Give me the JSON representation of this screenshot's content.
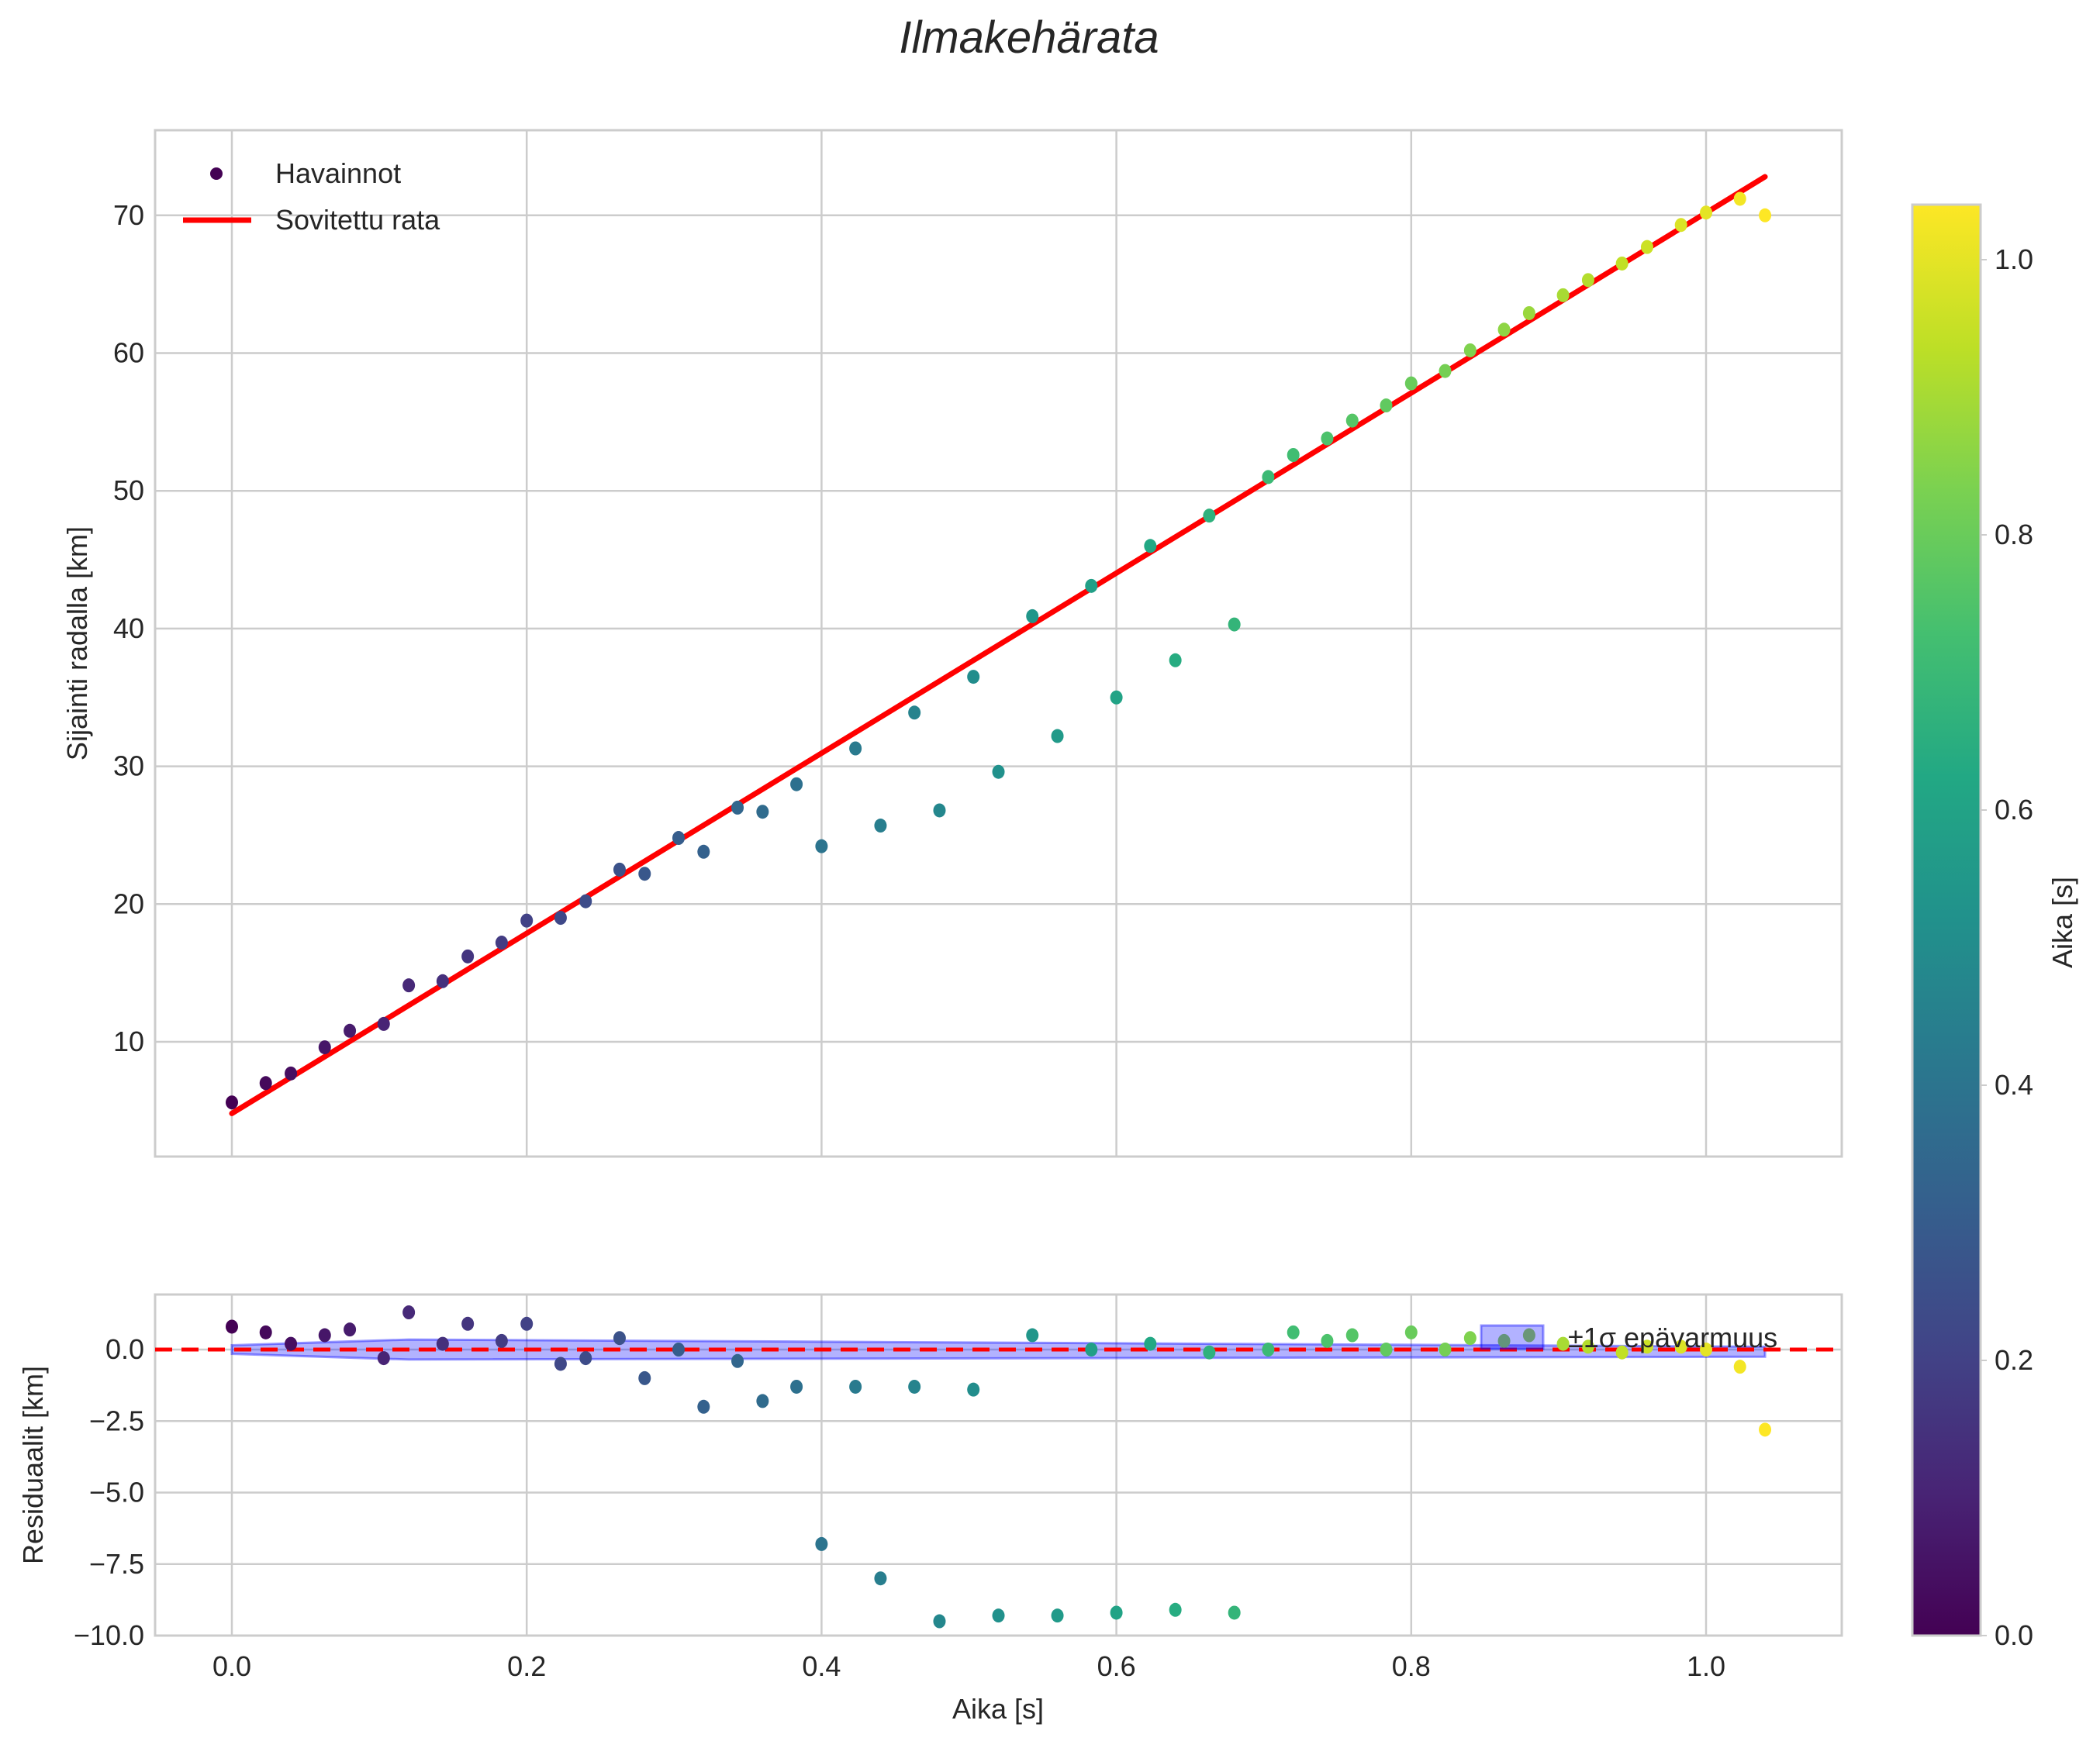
{
  "chart_data": {
    "type": "scatter",
    "title": "Ilmakehärata",
    "colormap": "viridis",
    "colors": {
      "fit_line": "#ff0000",
      "zero_line": "#ff0000",
      "uncertainty_band": "#0000ff",
      "grid": "#cccccc",
      "axes_edge": "#cccccc"
    },
    "panels": [
      {
        "id": "trajectory",
        "xlabel": "",
        "ylabel": "Sijainti radalla [km]",
        "xlim": [
          -0.052,
          1.092
        ],
        "ylim": [
          1.4,
          76.2
        ],
        "yticks": [
          10,
          20,
          30,
          40,
          50,
          60,
          70
        ],
        "xticks": [
          0.0,
          0.2,
          0.4,
          0.6,
          0.8,
          1.0
        ],
        "grid": true,
        "legend": {
          "position": "upper left",
          "entries": [
            {
              "label": "Havainnot",
              "type": "marker"
            },
            {
              "label": "Sovitettu rata",
              "type": "line"
            }
          ]
        },
        "series": [
          {
            "name": "Havainnot",
            "type": "scatter",
            "x": [
              0.0,
              0.023,
              0.04,
              0.063,
              0.08,
              0.103,
              0.12,
              0.143,
              0.16,
              0.183,
              0.2,
              0.223,
              0.24,
              0.263,
              0.28,
              0.303,
              0.32,
              0.343,
              0.36,
              0.383,
              0.4,
              0.423,
              0.44,
              0.463,
              0.48,
              0.503,
              0.52,
              0.543,
              0.56,
              0.583,
              0.6,
              0.623,
              0.64,
              0.663,
              0.68,
              0.703,
              0.72,
              0.743,
              0.76,
              0.783,
              0.8,
              0.823,
              0.84,
              0.863,
              0.88,
              0.903,
              0.92,
              0.943,
              0.96,
              0.983,
              1.0,
              1.023,
              1.04
            ],
            "y": [
              5.6,
              7.0,
              7.7,
              9.6,
              10.8,
              11.3,
              14.1,
              14.4,
              16.2,
              17.2,
              18.8,
              19.0,
              20.2,
              22.5,
              22.2,
              24.8,
              23.8,
              27.0,
              26.7,
              28.7,
              24.2,
              31.3,
              25.7,
              33.9,
              26.8,
              36.5,
              29.6,
              40.9,
              32.2,
              43.1,
              35.0,
              46.0,
              37.7,
              48.2,
              40.3,
              51.0,
              52.6,
              53.8,
              55.1,
              56.2,
              57.8,
              58.7,
              60.2,
              61.7,
              62.9,
              64.2,
              65.3,
              66.5,
              67.7,
              69.3,
              70.2,
              71.2,
              70.0
            ]
          },
          {
            "name": "Sovitettu rata",
            "type": "line",
            "x": [
              0.0,
              1.04
            ],
            "y": [
              4.8,
              72.8
            ]
          }
        ]
      },
      {
        "id": "residuals",
        "xlabel": "Aika [s]",
        "ylabel": "Residuaalit [km]",
        "xlim": [
          -0.052,
          1.092
        ],
        "ylim": [
          -10.0,
          1.8
        ],
        "yticks": [
          0.0,
          -2.5,
          -5.0,
          -7.5,
          -10.0
        ],
        "ytick_labels": [
          "0.0",
          "−2.5",
          "−5.0",
          "−7.5",
          "−10.0"
        ],
        "xticks": [
          0.0,
          0.2,
          0.4,
          0.6,
          0.8,
          1.0
        ],
        "xtick_labels": [
          "0.0",
          "0.2",
          "0.4",
          "0.6",
          "0.8",
          "1.0"
        ],
        "grid": true,
        "legend": {
          "position": "upper right",
          "entries": [
            {
              "label": "±1σ epävarmuus",
              "type": "patch"
            }
          ]
        },
        "series": [
          {
            "name": "Residuaalit",
            "type": "scatter",
            "x": [
              0.0,
              0.023,
              0.04,
              0.063,
              0.08,
              0.103,
              0.12,
              0.143,
              0.16,
              0.183,
              0.2,
              0.223,
              0.24,
              0.263,
              0.28,
              0.303,
              0.32,
              0.343,
              0.36,
              0.383,
              0.4,
              0.423,
              0.44,
              0.463,
              0.48,
              0.503,
              0.52,
              0.543,
              0.56,
              0.583,
              0.6,
              0.623,
              0.64,
              0.663,
              0.68,
              0.703,
              0.72,
              0.743,
              0.76,
              0.783,
              0.8,
              0.823,
              0.84,
              0.863,
              0.88,
              0.903,
              0.92,
              0.943,
              0.96,
              0.983,
              1.0,
              1.023,
              1.04
            ],
            "y": [
              0.8,
              0.6,
              0.2,
              0.5,
              0.7,
              -0.3,
              1.3,
              0.2,
              0.9,
              0.3,
              0.9,
              -0.5,
              -0.3,
              0.4,
              -1.0,
              0.0,
              -2.0,
              -0.4,
              -1.8,
              -1.3,
              -6.8,
              -1.3,
              -8.0,
              -1.3,
              -9.5,
              -1.4,
              -9.3,
              0.5,
              -9.3,
              0.0,
              -9.2,
              0.2,
              -9.1,
              -0.1,
              -9.2,
              0.0,
              0.6,
              0.3,
              0.5,
              0.0,
              0.6,
              0.0,
              0.4,
              0.3,
              0.5,
              0.2,
              0.1,
              -0.1,
              0.1,
              0.1,
              0.0,
              -0.6,
              -2.8
            ]
          },
          {
            "name": "Nollataso",
            "type": "line",
            "style": "dashed",
            "y": 0.0
          },
          {
            "name": "±1σ epävarmuus",
            "type": "area",
            "x": [
              0.0,
              0.12,
              1.04
            ],
            "upper": [
              0.15,
              0.35,
              0.1
            ],
            "lower": [
              -0.15,
              -0.35,
              -0.25
            ]
          }
        ]
      }
    ],
    "colorbar": {
      "label": "Aika [s]",
      "range": [
        0.0,
        1.04
      ],
      "ticks": [
        0.0,
        0.2,
        0.4,
        0.6,
        0.8,
        1.0
      ],
      "tick_labels": [
        "0.0",
        "0.2",
        "0.4",
        "0.6",
        "0.8",
        "1.0"
      ]
    }
  },
  "labels": {
    "title": "Ilmakehärata",
    "main_ylabel": "Sijainti radalla [km]",
    "resid_ylabel": "Residuaalit [km]",
    "xlabel": "Aika [s]",
    "legend_obs": "Havainnot",
    "legend_fit": "Sovitettu rata",
    "legend_sigma": "±1σ epävarmuus",
    "colorbar_label": "Aika [s]"
  }
}
